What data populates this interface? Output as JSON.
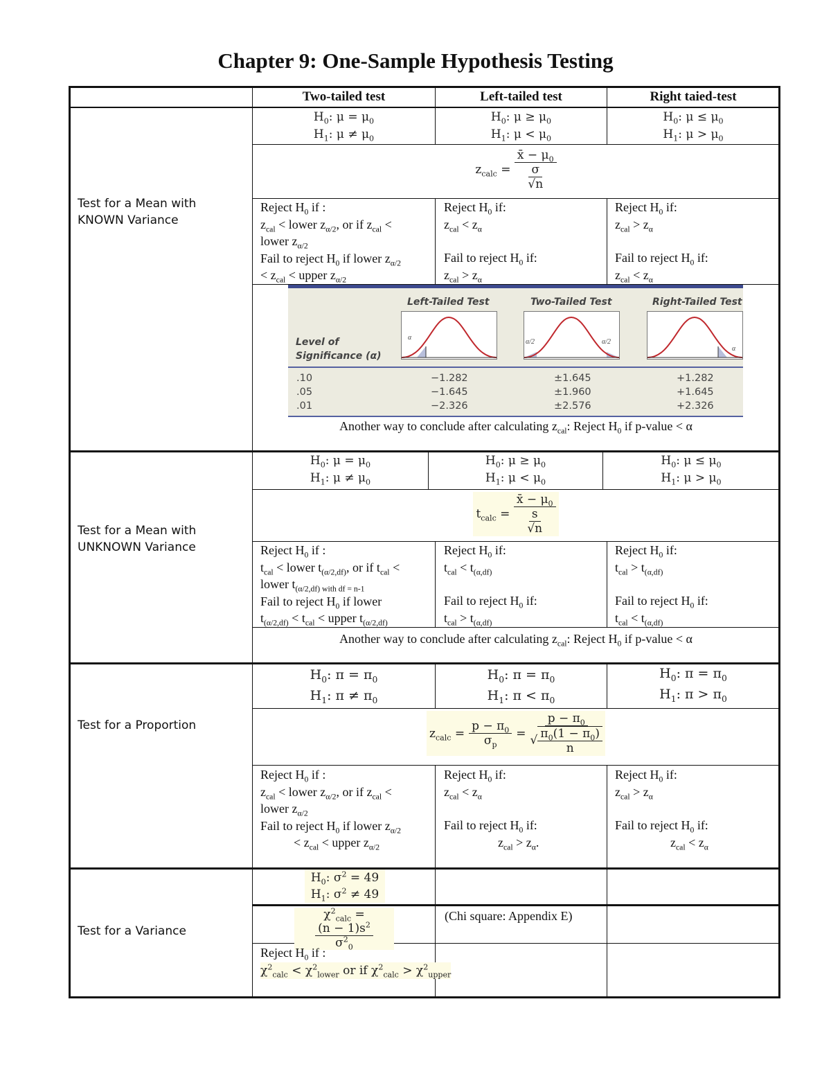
{
  "title": "Chapter 9: One-Sample Hypothesis Testing",
  "headers": [
    "Two-tailed test",
    "Left-tailed test",
    "Right taied-test"
  ],
  "sections": [
    {
      "label": [
        "Test for a Mean with",
        "KNOWN Variance"
      ],
      "hyp": [
        [
          "H_{0}: μ = μ_{0}",
          "H_{1}: μ ≠ μ_{0}"
        ],
        [
          "H_{0}: μ ≥ μ_{0}",
          "H_{1}: μ < μ_{0}"
        ],
        [
          "H_{0}: μ ≤ μ_{0}",
          "H_{1}: μ > μ_{0}"
        ]
      ],
      "formula": {
        "lhs": "z_{calc} =",
        "num": "x̄ − μ_{0}",
        "den_num": "σ",
        "den_den": "√n"
      },
      "reject": [
        [
          "Reject H_{0} if :",
          "z_{cal} < lower z_{α/2}, or if z_{cal} <",
          "lower z_{α/2}",
          "Fail to reject H_{0} if lower z_{α/2}",
          "< z_{cal} < upper z_{α/2}"
        ],
        [
          "Reject H_{0} if:",
          "z_{cal} < z_{α}",
          "",
          "Fail to reject H_{0} if:",
          "z_{cal} > z_{α}"
        ],
        [
          "Reject H_{0} if:",
          "z_{cal} > z_{α}",
          "",
          "Fail to reject H_{0} if:",
          "z_{cal} < z_{α}"
        ]
      ],
      "another": "Another way to conclude after calculating z_{cal}: Reject H_{0} if p-value < α"
    },
    {
      "label": [
        "Test for a Mean with",
        "UNKNOWN Variance"
      ],
      "hyp": [
        [
          "H_{0}: μ = μ_{0}",
          "H_{1}: μ ≠ μ_{0}"
        ],
        [
          "H_{0}: μ ≥ μ_{0}",
          "H_{1}: μ < μ_{0}"
        ],
        [
          "H_{0}: μ ≤ μ_{0}",
          "H_{1}: μ > μ_{0}"
        ]
      ],
      "formula": {
        "lhs": "t_{calc} =",
        "num": "x̄ − μ_{0}",
        "den_num": "s",
        "den_den": "√n"
      },
      "reject": [
        [
          "Reject H_{0} if :",
          "t_{cal} < lower t_{(α/2,df)}, or if t_{cal} <",
          "lower t_{(α/2,df) with df = n-1}",
          "Fail to reject H_{0} if lower",
          "t_{(α/2,df)} < t_{cal} < upper t_{(α/2,df)}"
        ],
        [
          "Reject H_{0} if:",
          "t_{cal} < t_{(α,df)}",
          "",
          "Fail to reject H_{0} if:",
          "t_{cal} > t_{(α,df)}"
        ],
        [
          "Reject H_{0} if:",
          "t_{cal} > t_{(α,df)}",
          "",
          "Fail to reject H_{0} if:",
          "t_{cal} < t_{(α,df)}"
        ]
      ],
      "another": "Another way to conclude after calculating z_{cal}: Reject H_{0} if p-value < α"
    },
    {
      "label": [
        "Test for a Proportion"
      ],
      "hyp": [
        [
          "H_{0}: π = π_{0}",
          "H_{1}: π ≠ π_{0}"
        ],
        [
          "H_{0}: π = π_{0}",
          "H_{1}: π < π_{0}"
        ],
        [
          "H_{0}: π = π_{0}",
          "H_{1}: π > π_{0}"
        ]
      ],
      "formula": {
        "lhs": "z_{calc} =",
        "num": "p − π_{0}",
        "den": "σ_{p}",
        "eq": "=",
        "num2": "p − π_{0}",
        "den2_num": "π_{0}(1 − π_{0})",
        "den2_den": "n"
      },
      "reject": [
        [
          "Reject H_{0} if :",
          "z_{cal} < lower z_{α/2}, or if z_{cal} <",
          "lower z_{α/2}",
          "Fail to reject H_{0} if lower z_{α/2}",
          "< z_{cal} < upper z_{α/2}"
        ],
        [
          "Reject H_{0} if:",
          "z_{cal} < z_{α}",
          "",
          "Fail to reject H_{0} if:",
          "z_{cal} > z_{α}."
        ],
        [
          "Reject H_{0} if:",
          "z_{cal} > z_{α}",
          "",
          "Fail to reject H_{0} if:",
          "z_{cal} < z_{α}"
        ]
      ]
    },
    {
      "label": [
        "Test for a Variance"
      ],
      "hyp": [
        "H_{0}: σ^{2} = 49",
        "H_{1}: σ^{2} ≠ 49"
      ],
      "formula": {
        "lhs": "χ^{2}_{calc} =",
        "num": "(n − 1)s^{2}",
        "den": "σ^{2}_{0}"
      },
      "note": "(Chi square: Appendix E)",
      "reject": [
        "Reject H_{0} if :",
        "χ^{2}_{calc} < χ^{2}_{lower} or if χ^{2}_{calc} > χ^{2}_{upper}"
      ]
    }
  ],
  "figure": {
    "col_headers": [
      "Left-Tailed Test",
      "Two-Tailed Test",
      "Right-Tailed Test"
    ],
    "row_header": [
      "Level of",
      "Significance (α)"
    ],
    "tail_labels": {
      "left": "α",
      "two_left": "α/2",
      "two_right": "α/2",
      "right": "α"
    },
    "alphas": [
      ".10",
      ".05",
      ".01"
    ],
    "left": [
      "−1.282",
      "−1.645",
      "−2.326"
    ],
    "two": [
      "±1.645",
      "±1.960",
      "±2.576"
    ],
    "right": [
      "+1.282",
      "+1.645",
      "+2.326"
    ],
    "colors": {
      "band": "#3d4a8e",
      "background": "#ecebe0",
      "curve": "#c0282d",
      "shade": "#b8bfdc"
    }
  }
}
